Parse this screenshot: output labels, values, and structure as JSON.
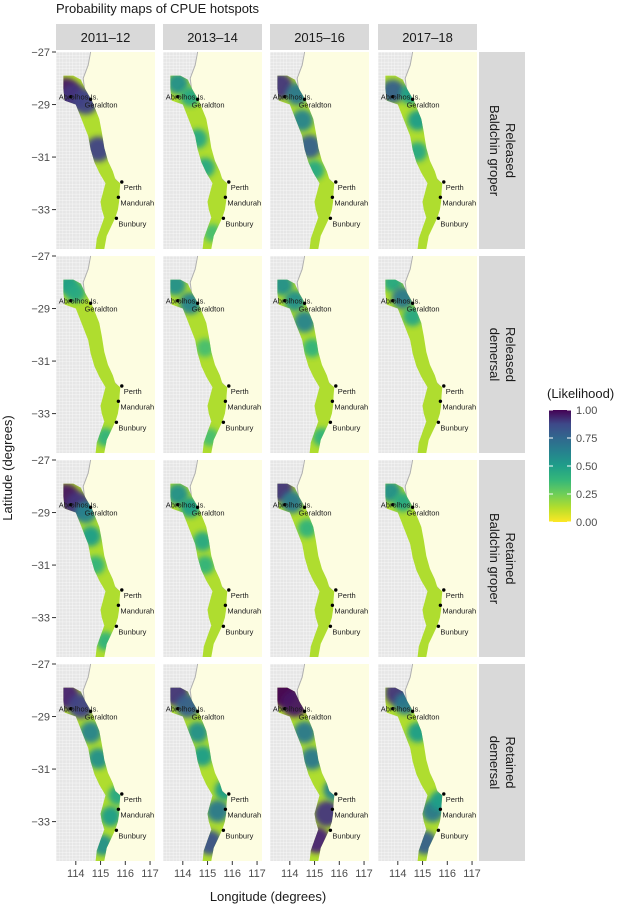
{
  "chart_data": {
    "type": "heatmap",
    "title": "Probability maps of CPUE hotspots",
    "xlabel": "Longitude (degrees)",
    "ylabel": "Latitude (degrees)",
    "column_facets": [
      "2011–12",
      "2013–14",
      "2015–16",
      "2017–18"
    ],
    "row_facets": [
      {
        "line1": "Released",
        "line2": "Baldchin groper"
      },
      {
        "line1": "Released",
        "line2": "demersal"
      },
      {
        "line1": "Retained",
        "line2": "Baldchin groper"
      },
      {
        "line1": "Retained",
        "line2": "demersal"
      }
    ],
    "x_ticks": [
      "114",
      "115",
      "116",
      "117"
    ],
    "y_ticks": [
      "−27",
      "−29",
      "−31",
      "−33"
    ],
    "x_tick_values": [
      114,
      115,
      116,
      117
    ],
    "y_tick_values": [
      -27,
      -29,
      -31,
      -33
    ],
    "xlim": [
      113.2,
      117.2
    ],
    "ylim": [
      -34.5,
      -27
    ],
    "legend": {
      "title": "(Likelihood)",
      "ticks": [
        "1.00",
        "0.75",
        "0.50",
        "0.25",
        "0.00"
      ],
      "tick_values": [
        1.0,
        0.75,
        0.5,
        0.25,
        0.0
      ],
      "placement": "right",
      "colors": [
        "#fde725",
        "#b5de2b",
        "#6ece58",
        "#35b779",
        "#1f9e89",
        "#26828e",
        "#31688e",
        "#3e4989",
        "#482878",
        "#440154"
      ]
    },
    "locations": [
      {
        "name": "Abrolhos Is.",
        "lon": 113.8,
        "lat": -28.7
      },
      {
        "name": "Geraldton",
        "lon": 114.6,
        "lat": -28.8
      },
      {
        "name": "Perth",
        "lon": 115.86,
        "lat": -31.95
      },
      {
        "name": "Mandurah",
        "lon": 115.72,
        "lat": -32.53
      },
      {
        "name": "Bunbury",
        "lon": 115.64,
        "lat": -33.33
      }
    ],
    "hotspots": [
      [
        [
          [
            113.6,
            -28.5,
            0.95
          ],
          [
            113.9,
            -28.7,
            0.85
          ],
          [
            114.4,
            -28.9,
            0.8
          ],
          [
            114.9,
            -30.7,
            0.8
          ]
        ],
        [
          [
            113.8,
            -28.2,
            0.5
          ],
          [
            114.3,
            -28.7,
            0.4
          ],
          [
            114.6,
            -30.3,
            0.4
          ],
          [
            114.9,
            -31.4,
            0.4
          ],
          [
            115.2,
            -33.9,
            0.3
          ]
        ],
        [
          [
            113.6,
            -28.3,
            0.85
          ],
          [
            114.3,
            -28.6,
            0.6
          ],
          [
            114.5,
            -29.6,
            0.55
          ],
          [
            114.8,
            -30.6,
            0.7
          ],
          [
            115.0,
            -31.5,
            0.4
          ]
        ],
        [
          [
            113.8,
            -28.5,
            0.7
          ],
          [
            114.5,
            -28.6,
            0.45
          ],
          [
            114.8,
            -29.6,
            0.45
          ],
          [
            114.8,
            -30.8,
            0.4
          ]
        ]
      ],
      [
        [
          [
            113.7,
            -28.1,
            0.45
          ],
          [
            114.0,
            -28.4,
            0.4
          ],
          [
            115.2,
            -33.9,
            0.35
          ]
        ],
        [
          [
            113.7,
            -28.1,
            0.5
          ],
          [
            114.3,
            -28.8,
            0.55
          ],
          [
            114.9,
            -30.5,
            0.3
          ],
          [
            115.1,
            -33.9,
            0.3
          ]
        ],
        [
          [
            113.7,
            -28.1,
            0.5
          ],
          [
            114.2,
            -28.7,
            0.5
          ],
          [
            114.6,
            -29.5,
            0.55
          ],
          [
            114.9,
            -30.5,
            0.35
          ],
          [
            115.3,
            -33.9,
            0.35
          ]
        ],
        [
          [
            113.8,
            -28.0,
            0.4
          ],
          [
            114.2,
            -28.6,
            0.6
          ],
          [
            114.6,
            -29.3,
            0.4
          ]
        ]
      ],
      [
        [
          [
            113.6,
            -28.4,
            0.95
          ],
          [
            114.1,
            -28.7,
            0.85
          ],
          [
            114.4,
            -29.0,
            0.55
          ],
          [
            114.6,
            -29.9,
            0.45
          ],
          [
            114.8,
            -31.0,
            0.35
          ],
          [
            115.2,
            -33.9,
            0.35
          ]
        ],
        [
          [
            113.8,
            -28.3,
            0.5
          ],
          [
            114.3,
            -28.8,
            0.45
          ],
          [
            114.8,
            -30.1,
            0.4
          ],
          [
            114.9,
            -31.0,
            0.35
          ]
        ],
        [
          [
            113.6,
            -28.1,
            0.85
          ],
          [
            114.1,
            -28.6,
            0.6
          ],
          [
            114.7,
            -29.6,
            0.35
          ]
        ],
        [
          [
            113.7,
            -28.2,
            0.5
          ],
          [
            114.2,
            -28.6,
            0.4
          ]
        ]
      ],
      [
        [
          [
            113.6,
            -28.2,
            0.9
          ],
          [
            114.2,
            -28.6,
            0.8
          ],
          [
            114.6,
            -29.6,
            0.55
          ],
          [
            114.9,
            -30.6,
            0.5
          ],
          [
            115.4,
            -32.8,
            0.45
          ],
          [
            115.1,
            -33.9,
            0.5
          ],
          [
            115.7,
            -32.0,
            0.4
          ]
        ],
        [
          [
            113.7,
            -28.1,
            0.85
          ],
          [
            114.2,
            -28.6,
            0.7
          ],
          [
            114.6,
            -29.6,
            0.5
          ],
          [
            114.8,
            -30.5,
            0.45
          ],
          [
            115.4,
            -32.6,
            0.6
          ],
          [
            115.1,
            -33.8,
            0.75
          ],
          [
            115.7,
            -31.8,
            0.45
          ]
        ],
        [
          [
            113.7,
            -28.1,
            1.0
          ],
          [
            114.2,
            -28.5,
            0.95
          ],
          [
            114.6,
            -29.6,
            0.6
          ],
          [
            114.9,
            -30.6,
            0.6
          ],
          [
            115.5,
            -32.7,
            0.85
          ],
          [
            115.1,
            -33.7,
            0.9
          ],
          [
            115.8,
            -31.8,
            0.55
          ]
        ],
        [
          [
            114.0,
            -28.1,
            0.85
          ],
          [
            114.3,
            -28.5,
            0.6
          ],
          [
            114.8,
            -29.6,
            0.45
          ],
          [
            115.4,
            -32.6,
            0.6
          ],
          [
            115.1,
            -33.8,
            0.7
          ],
          [
            115.7,
            -32.2,
            0.45
          ]
        ]
      ]
    ]
  }
}
